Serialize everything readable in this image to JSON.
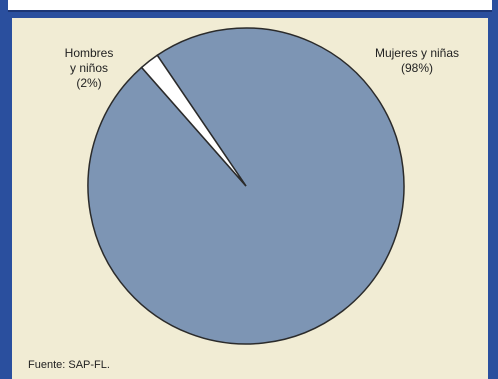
{
  "chart_data": {
    "type": "pie",
    "title": "",
    "categories": [
      "Mujeres y niñas",
      "Hombres y niños"
    ],
    "values": [
      98,
      2
    ],
    "labels": [
      {
        "line1": "Mujeres y niñas",
        "line2": "",
        "pct": "(98%)"
      },
      {
        "line1": "Hombres",
        "line2": "y niños",
        "pct": "(2%)"
      }
    ],
    "colors": [
      "#7d95b4",
      "#ffffff"
    ],
    "outline_color": "#2b2b2b",
    "source": "Fuente: SAP-FL."
  }
}
